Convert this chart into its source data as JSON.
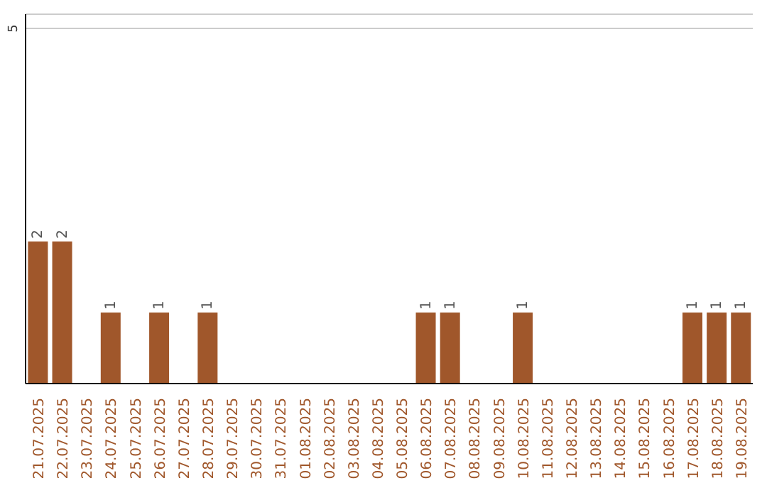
{
  "chart_data": {
    "type": "bar",
    "categories": [
      "21.07.2025",
      "22.07.2025",
      "23.07.2025",
      "24.07.2025",
      "25.07.2025",
      "26.07.2025",
      "27.07.2025",
      "28.07.2025",
      "29.07.2025",
      "30.07.2025",
      "31.07.2025",
      "01.08.2025",
      "02.08.2025",
      "03.08.2025",
      "04.08.2025",
      "05.08.2025",
      "06.08.2025",
      "07.08.2025",
      "08.08.2025",
      "09.08.2025",
      "10.08.2025",
      "11.08.2025",
      "12.08.2025",
      "13.08.2025",
      "14.08.2025",
      "15.08.2025",
      "16.08.2025",
      "17.08.2025",
      "18.08.2025",
      "19.08.2025"
    ],
    "values": [
      2,
      2,
      null,
      1,
      null,
      1,
      null,
      1,
      null,
      null,
      null,
      null,
      null,
      null,
      null,
      null,
      1,
      1,
      null,
      null,
      1,
      null,
      null,
      null,
      null,
      null,
      null,
      1,
      1,
      1
    ],
    "color": "#a0572b",
    "ylim": [
      0,
      5.2
    ],
    "yticks": [
      5
    ],
    "grid": "y",
    "data_labels": true
  }
}
